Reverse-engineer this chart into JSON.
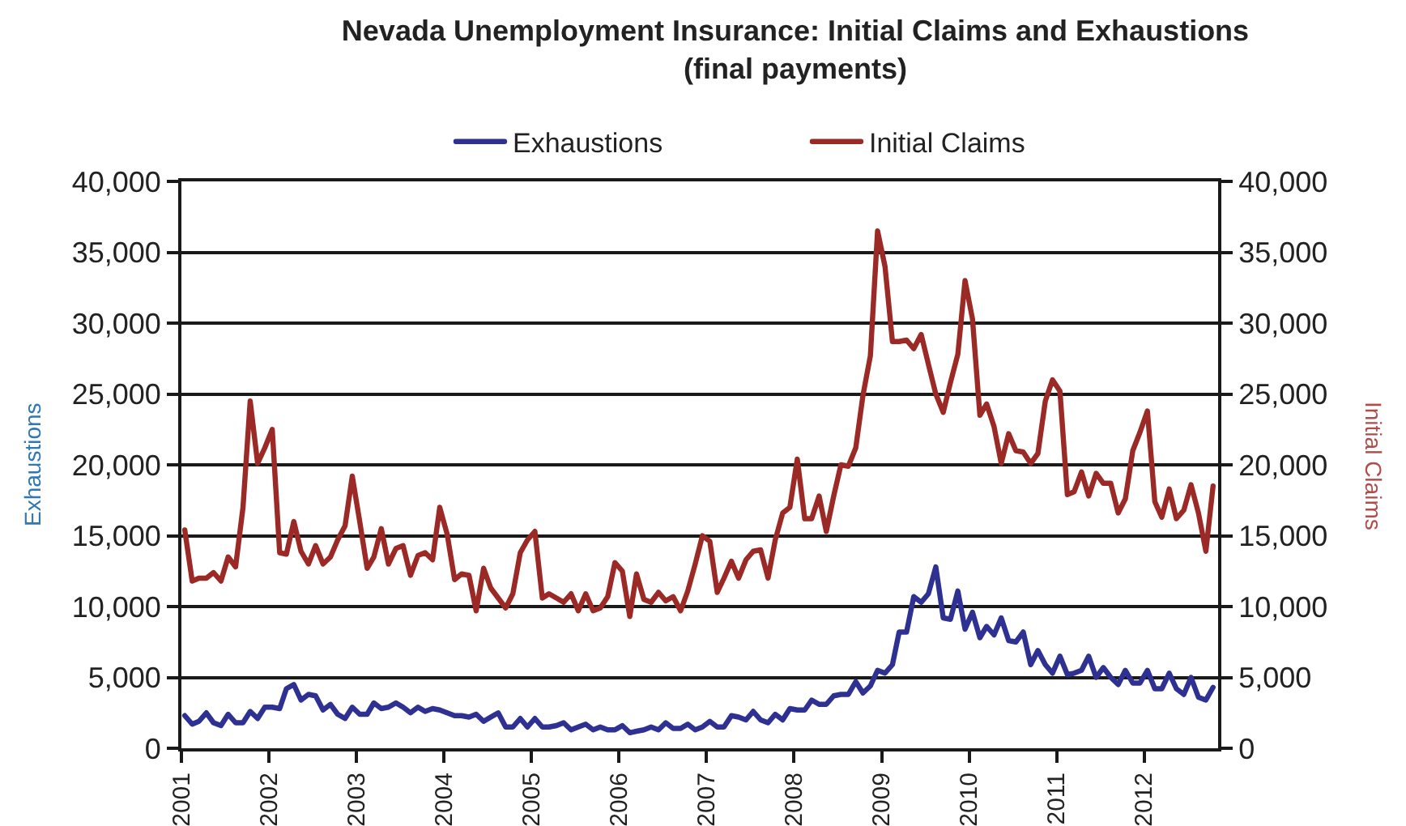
{
  "chart_data": {
    "type": "line",
    "title": "Nevada Unemployment Insurance: Initial Claims and Exhaustions\n(final payments)",
    "ylabel": "Exhaustions",
    "y2label": "Initial Claims",
    "x": [
      "2001-01-15",
      "2001-02-15",
      "2001-03-15",
      "2001-04-15",
      "2001-05-15",
      "2001-06-15",
      "2001-07-15",
      "2001-08-15",
      "2001-09-15",
      "2001-10-15",
      "2001-11-15",
      "2001-12-15",
      "2002-01-15",
      "2002-02-15",
      "2002-03-15",
      "2002-04-15",
      "2002-05-15",
      "2002-06-15",
      "2002-07-15",
      "2002-08-15",
      "2002-09-15",
      "2002-10-15",
      "2002-11-15",
      "2002-12-15",
      "2003-01-15",
      "2003-02-15",
      "2003-03-15",
      "2003-04-15",
      "2003-05-15",
      "2003-06-15",
      "2003-07-15",
      "2003-08-15",
      "2003-09-15",
      "2003-10-15",
      "2003-11-15",
      "2003-12-15",
      "2004-01-15",
      "2004-02-15",
      "2004-03-15",
      "2004-04-15",
      "2004-05-15",
      "2004-06-15",
      "2004-07-15",
      "2004-08-15",
      "2004-09-15",
      "2004-10-15",
      "2004-11-15",
      "2004-12-15",
      "2005-01-15",
      "2005-02-15",
      "2005-03-15",
      "2005-04-15",
      "2005-05-15",
      "2005-06-15",
      "2005-07-15",
      "2005-08-15",
      "2005-09-15",
      "2005-10-15",
      "2005-11-15",
      "2005-12-15",
      "2006-01-15",
      "2006-02-15",
      "2006-03-15",
      "2006-04-15",
      "2006-05-15",
      "2006-06-15",
      "2006-07-15",
      "2006-08-15",
      "2006-09-15",
      "2006-10-15",
      "2006-11-15",
      "2006-12-15",
      "2007-01-15",
      "2007-02-15",
      "2007-03-15",
      "2007-04-15",
      "2007-05-15",
      "2007-06-15",
      "2007-07-15",
      "2007-08-15",
      "2007-09-15",
      "2007-10-15",
      "2007-11-15",
      "2007-12-15",
      "2008-01-15",
      "2008-02-15",
      "2008-03-15",
      "2008-04-15",
      "2008-05-15",
      "2008-06-15",
      "2008-07-15",
      "2008-08-15",
      "2008-09-15",
      "2008-10-15",
      "2008-11-15",
      "2008-12-15",
      "2009-01-15",
      "2009-02-15",
      "2009-03-15",
      "2009-04-15",
      "2009-05-15",
      "2009-06-15",
      "2009-07-15",
      "2009-08-15",
      "2009-09-15",
      "2009-10-15",
      "2009-11-15",
      "2009-12-15",
      "2010-01-15",
      "2010-02-15",
      "2010-03-15",
      "2010-04-15",
      "2010-05-15",
      "2010-06-15",
      "2010-07-15",
      "2010-08-15",
      "2010-09-15",
      "2010-10-15",
      "2010-11-15",
      "2010-12-15",
      "2011-01-15",
      "2011-02-15",
      "2011-03-15",
      "2011-04-15",
      "2011-05-15",
      "2011-06-15",
      "2011-07-15",
      "2011-08-15",
      "2011-09-15",
      "2011-10-15",
      "2011-11-15",
      "2011-12-15",
      "2012-01-15",
      "2012-02-15",
      "2012-03-15",
      "2012-04-15",
      "2012-05-15",
      "2012-06-15",
      "2012-07-15",
      "2012-08-15",
      "2012-09-15",
      "2012-10-15"
    ],
    "xlim": [
      "2001-01-01",
      "2012-11-05"
    ],
    "xticks": [
      "2001",
      "2002",
      "2003",
      "2004",
      "2005",
      "2006",
      "2007",
      "2008",
      "2009",
      "2010",
      "2011",
      "2012"
    ],
    "ylim": [
      0,
      40000
    ],
    "yticks": [
      0,
      {
        "value": 5000,
        "label": "5,000"
      },
      {
        "value": 10000,
        "label": "10,000"
      },
      {
        "value": 15000,
        "label": "15,000"
      },
      {
        "value": 20000,
        "label": "20,000"
      },
      {
        "value": 25000,
        "label": "25,000"
      },
      {
        "value": 30000,
        "label": "30,000"
      },
      {
        "value": 35000,
        "label": "35,000"
      },
      {
        "value": 40000,
        "label": "40,000"
      }
    ],
    "y2lim": [
      0,
      40000
    ],
    "y2ticks": [
      0,
      {
        "value": 5000,
        "label": "5,000"
      },
      {
        "value": 10000,
        "label": "10,000"
      },
      {
        "value": 15000,
        "label": "15,000"
      },
      {
        "value": 20000,
        "label": "20,000"
      },
      {
        "value": 25000,
        "label": "25,000"
      },
      {
        "value": 30000,
        "label": "30,000"
      },
      {
        "value": 35000,
        "label": "35,000"
      },
      {
        "value": 40000,
        "label": "40,000"
      }
    ],
    "grid": "y",
    "legend": "top",
    "line_style": "solid",
    "series": [
      {
        "name": "Exhaustions",
        "color": "#2e3192",
        "values": [
          2300,
          1700,
          1900,
          2500,
          1800,
          1600,
          2400,
          1800,
          1800,
          2600,
          2100,
          2900,
          2900,
          2800,
          4200,
          4500,
          3400,
          3800,
          3700,
          2700,
          3100,
          2400,
          2100,
          2900,
          2400,
          2400,
          3200,
          2800,
          2900,
          3200,
          2900,
          2500,
          2900,
          2600,
          2800,
          2700,
          2500,
          2300,
          2300,
          2200,
          2400,
          1900,
          2200,
          2500,
          1500,
          1500,
          2100,
          1500,
          2100,
          1500,
          1500,
          1600,
          1800,
          1300,
          1500,
          1700,
          1300,
          1500,
          1300,
          1300,
          1600,
          1100,
          1200,
          1300,
          1500,
          1300,
          1800,
          1400,
          1400,
          1700,
          1300,
          1500,
          1900,
          1500,
          1500,
          2300,
          2200,
          2000,
          2600,
          2000,
          1800,
          2400,
          2000,
          2800,
          2700,
          2700,
          3400,
          3100,
          3100,
          3700,
          3800,
          3800,
          4700,
          3900,
          4400,
          5500,
          5300,
          5900,
          8200,
          8200,
          10700,
          10300,
          10900,
          12800,
          9200,
          9100,
          11100,
          8400,
          9600,
          7800,
          8600,
          8000,
          9200,
          7600,
          7500,
          8200,
          5900,
          6900,
          5900,
          5300,
          6500,
          5200,
          5300,
          5500,
          6500,
          5000,
          5700,
          5000,
          4500,
          5500,
          4600,
          4600,
          5500,
          4200,
          4200,
          5300,
          4200,
          3800,
          5000,
          3600,
          3400,
          4300
        ]
      },
      {
        "name": "Initial Claims",
        "color": "#9b2a26",
        "axis": "y2",
        "values": [
          15400,
          11800,
          12000,
          12000,
          12400,
          11800,
          13500,
          12800,
          17000,
          24500,
          20100,
          21200,
          22500,
          13800,
          13700,
          16000,
          13900,
          13000,
          14300,
          13000,
          13500,
          14700,
          15700,
          19200,
          16000,
          12700,
          13500,
          15500,
          13000,
          14100,
          14300,
          12200,
          13600,
          13800,
          13300,
          17000,
          15100,
          11900,
          12300,
          12200,
          9700,
          12700,
          11300,
          10600,
          9900,
          10900,
          13800,
          14700,
          15300,
          10600,
          10900,
          10600,
          10300,
          10900,
          9700,
          10900,
          9700,
          9900,
          10700,
          13100,
          12500,
          9300,
          12300,
          10500,
          10300,
          11000,
          10400,
          10700,
          9700,
          11100,
          13000,
          15000,
          14600,
          11000,
          12000,
          13200,
          12000,
          13300,
          13900,
          14000,
          12000,
          14700,
          16600,
          17000,
          20400,
          16200,
          16200,
          17800,
          15300,
          17800,
          20000,
          19900,
          21200,
          24900,
          27700,
          36500,
          34000,
          28700,
          28700,
          28800,
          28200,
          29200,
          27100,
          25000,
          23700,
          25800,
          27800,
          33000,
          30300,
          23500,
          24300,
          22700,
          20100,
          22200,
          21000,
          20900,
          20100,
          20800,
          24500,
          26000,
          25200,
          17900,
          18100,
          19500,
          17800,
          19400,
          18700,
          18700,
          16600,
          17600,
          21000,
          22300,
          23800,
          17400,
          16300,
          18300,
          16200,
          16800,
          18600,
          16600,
          13900,
          18500
        ]
      }
    ]
  }
}
